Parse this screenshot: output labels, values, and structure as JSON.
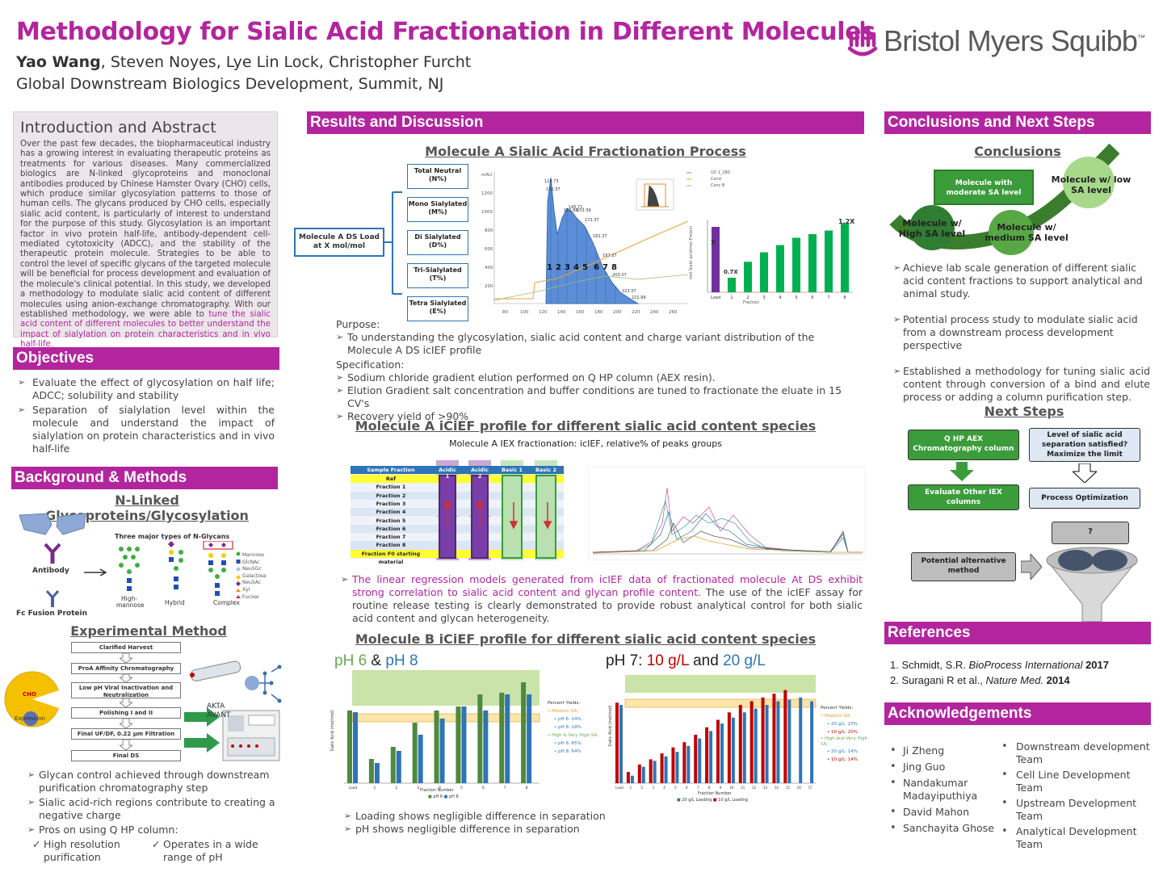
{
  "header": {
    "title": "Methodology for Sialic Acid Fractionation in Different Molecules",
    "author_lead": "Yao Wang",
    "authors_rest": ", Steven Noyes, Lye Lin Lock, Christopher Furcht",
    "affiliation": "Global Downstream Biologics Development, Summit, NJ",
    "logo_text": "Bristol Myers Squibb",
    "logo_tm": "™"
  },
  "intro": {
    "heading": "Introduction and Abstract",
    "text": "Over the past few decades, the biopharmaceutical industry has a growing interest in evaluating therapeutic proteins as treatments for various diseases. Many commercialized biologics are N-linked glycoproteins and monoclonal antibodies produced by Chinese Hamster Ovary (CHO) cells, which produce similar glycosylation patterns to those of human cells. The glycans produced by CHO cells, especially sialic acid content, is particularly of interest to understand for the purpose of this study. Glycosylation is an important factor in vivo protein half-life, antibody-dependent cell-mediated cytotoxicity (ADCC), and the stability of the therapeutic protein molecule. Strategies to be able to control the level of specific glycans of the targeted molecule will be beneficial for process development and evaluation of the molecule's clinical potential. In this study, we developed a methodology to modulate sialic acid content of different molecules using anion-exchange chromatography. With our established methodology, we were able to ",
    "highlight": "tune the sialic acid content of different molecules to better understand the impact of sialylation on protein characteristics and in vivo half-life."
  },
  "objectives": {
    "heading": "Objectives",
    "items": [
      "Evaluate the effect of glycosylation on half life; ADCC; solubility and stability",
      "Separation of sialylation level within the molecule and understand the impact of sialylation on protein characteristics and in vivo half-life"
    ]
  },
  "background": {
    "heading": "Background & Methods",
    "sub1": "N-Linked Glycoproteins/Glycosylation",
    "glycan_title": "Three major types of N-Glycans",
    "antibody": "Antibody",
    "fc_fusion": "Fc Fusion Protein",
    "glycan_types": [
      "High-mannose",
      "Hybrid",
      "Complex"
    ],
    "legend": [
      "Mannose",
      "GlcNAc",
      "Neu5Gc",
      "Galactose",
      "Neu5Ac",
      "Xyl",
      "Fucose"
    ],
    "sub2": "Experimental Method",
    "flow": [
      "Clarified Harvest",
      "ProA Affinity Chromatography",
      "Low pH Viral Inactivation and Neutralization",
      "Polishing I and II",
      "Final UF/DF, 0.22 µm Filtration",
      "Final DS"
    ],
    "cho": "CHO",
    "expression": "Expression",
    "akta": "AKTA AVANT",
    "bullets": [
      "Glycan control achieved through downstream purification chromatography step",
      "Sialic acid-rich regions contribute to creating a negative charge",
      "Pros on using Q HP column:"
    ],
    "checks": [
      "High resolution purification",
      "Operates in a wide range of pH"
    ]
  },
  "results": {
    "heading": "Results and Discussion",
    "sub1": "Molecule A Sialic Acid Fractionation Process",
    "load_box": "Molecule A DS Load at X mol/mol",
    "fractions": [
      "Total Neutral (N%)",
      "Mono Sialylated (M%)",
      "Di Sialylated (D%)",
      "Tri-Sialylated (T%)",
      "Tetra Sialylated (E%)"
    ],
    "chrom_unit": "mAU",
    "chrom_legend": [
      "UV 1_280",
      "Cond",
      "Conc B"
    ],
    "chrom_peaks": [
      "129.73",
      "130.37",
      "145.71",
      "152.88",
      "153.39",
      "172.37",
      "182.37",
      "197.37",
      "203.37",
      "221.99",
      "223.37"
    ],
    "chrom_y_ticks": [
      "1200",
      "1000",
      "800",
      "600",
      "400",
      "200"
    ],
    "chrom_x_ticks": [
      "80",
      "100",
      "120",
      "140",
      "160",
      "180",
      "200",
      "220",
      "240",
      "260"
    ],
    "chrom_frac_labels": [
      "1",
      "2",
      "3",
      "4",
      "5",
      "6",
      "7",
      "8"
    ],
    "sa_chart": {
      "ylabel": "mol Sialic acid/mol Protein",
      "xlabel": "Fraction",
      "label_x": "X",
      "label_07": "0.7X",
      "label_12": "1.2X",
      "categories": [
        "Load",
        "1",
        "2",
        "3",
        "4",
        "5",
        "6",
        "7",
        "8"
      ],
      "values": [
        0.9,
        0.2,
        0.42,
        0.55,
        0.65,
        0.75,
        0.8,
        0.85,
        0.95
      ]
    },
    "purpose_label": "Purpose:",
    "purpose": "To understanding the glycosylation, sialic acid content and charge variant distribution of the Molecule A DS icIEF profile",
    "spec_label": "Specification:",
    "spec": [
      "Sodium chloride gradient elution performed on Q HP column (AEX resin).",
      "Elution Gradient salt concentration and buffer conditions are tuned to fractionate the eluate in 15 CV's",
      "Recovery yield of >90%"
    ],
    "sub2": "Molecule A iCiEF profile for different sialic acid content species",
    "iex_caption": "Molecule A IEX fractionation: icIEF, relative% of peaks groups",
    "table_headers": [
      "Sample Fraction",
      "Acidic 1",
      "Acidic 2",
      "Basic 1",
      "Basic 2"
    ],
    "table_rows": [
      "Ref",
      "Fraction 1",
      "Fraction 2",
      "Fraction 3",
      "Fraction 4",
      "Fraction 5",
      "Fraction 6",
      "Fraction 7",
      "Fraction 8",
      "Fraction F0 starting material"
    ],
    "regression_highlight": "The linear regression models generated from icIEF data of fractionated molecule At DS exhibit strong correlation to sialic acid content and glycan profile content.",
    "regression_rest": " The use of the icIEF assay for routine release testing is clearly demonstrated to provide robust analytical control for both sialic acid content and glycan heterogeneity.",
    "sub3": "Molecule B iCiEF profile for different sialic acid content species",
    "ph_chart": {
      "title_a": "pH 6",
      "title_amp": "&",
      "title_b": "pH 8",
      "ylabel": "Sialic Acid (mol/mol)",
      "xlabel": "Fraction Number",
      "categories": [
        "Load",
        "1",
        "2",
        "3",
        "4",
        "5",
        "6",
        "7",
        "8"
      ],
      "series": [
        {
          "name": "pH 6",
          "values": [
            0.9,
            0.3,
            0.45,
            0.75,
            0.9,
            0.95,
            1.1,
            1.12,
            1.25
          ]
        },
        {
          "name": "pH 8",
          "values": [
            0.88,
            0.25,
            0.4,
            0.6,
            0.8,
            0.95,
            0.9,
            1.1,
            1.1
          ]
        }
      ],
      "yields_title": "Percent Yields:",
      "yields": [
        "Medium SA:",
        "pH 6: 14%",
        "pH 8: 19%",
        "High & Very High SA:",
        "pH 6: 65%",
        "pH 8: 64%"
      ],
      "colors": {
        "ph6": "#4e8a3c",
        "ph8": "#2e75b6"
      }
    },
    "gl_chart": {
      "title_a": "pH 7:",
      "title_b": "10 g/L",
      "title_and": "and",
      "title_c": "20 g/L",
      "ylabel": "Sialic Acid (mol/mol)",
      "xlabel": "Fraction Number",
      "categories": [
        "Load",
        "1",
        "2",
        "3",
        "4",
        "5",
        "6",
        "7",
        "8",
        "9",
        "10",
        "11",
        "12",
        "13",
        "14",
        "15",
        "16",
        "17"
      ],
      "series": [
        {
          "name": "20 g/L Loading",
          "values": [
            1.05,
            0.1,
            0.22,
            0.3,
            0.36,
            0.42,
            0.5,
            0.6,
            0.7,
            0.8,
            0.88,
            0.95,
            1.0,
            1.05,
            1.1,
            1.12,
            1.15,
            1.1
          ]
        },
        {
          "name": "10 g/L Loading",
          "values": [
            1.08,
            0.15,
            0.25,
            0.32,
            0.4,
            0.48,
            0.55,
            0.65,
            0.75,
            0.85,
            0.95,
            1.05,
            1.1,
            1.15,
            1.2,
            1.25,
            0,
            0
          ]
        }
      ],
      "yields_title": "Percent Yields:",
      "yields": [
        "Medium SA:",
        "20 g/L: 23%",
        "10 g/L: 20%",
        "High and Very High SA:",
        "20 g/L: 14%",
        "10 g/L: 14%"
      ],
      "colors": {
        "l20": "#2e75b6",
        "l10": "#c00000"
      }
    },
    "bottom_bullets": [
      "Loading shows negligible difference in separation",
      "pH shows negligible difference in separation"
    ]
  },
  "conclusions": {
    "heading": "Conclusions and Next Steps",
    "sub1": "Conclusions",
    "nodes": [
      "Molecule with moderate SA level",
      "Molecule w/ low SA level",
      "Molecule w/ High SA level",
      "Molecule w/ medium SA level"
    ],
    "bullets": [
      "Achieve lab scale generation of different sialic acid content fractions to support analytical and animal study.",
      "Potential process study to modulate sialic acid from a downstream process development perspective",
      "Established a methodology for tuning sialic acid content through conversion of a bind and elute process or adding a column purification step."
    ],
    "sub2": "Next Steps",
    "next": [
      "Q HP AEX Chromatography column",
      "Level of sialic acid separation satisfied? Maximize the limit",
      "Evaluate Other IEX columns",
      "Process Optimization",
      "Potential alternative method",
      "?"
    ]
  },
  "references": {
    "heading": "References",
    "items": [
      {
        "pre": "1. Schmidt, S.R. ",
        "ital": "BioProcess International",
        "post": " 2017"
      },
      {
        "pre": "2. Suragani R et al., ",
        "ital": "Nature Med.",
        "post": " 2014"
      }
    ]
  },
  "acknowledgements": {
    "heading": "Acknowledgements",
    "left": [
      "Ji Zheng",
      "Jing Guo",
      "Nandakumar Madayiputhiya",
      "David Mahon",
      "Sanchayita Ghose"
    ],
    "right": [
      "Downstream development Team",
      "Cell Line Development Team",
      "Upstream Development Team",
      "Analytical Development Team"
    ]
  }
}
